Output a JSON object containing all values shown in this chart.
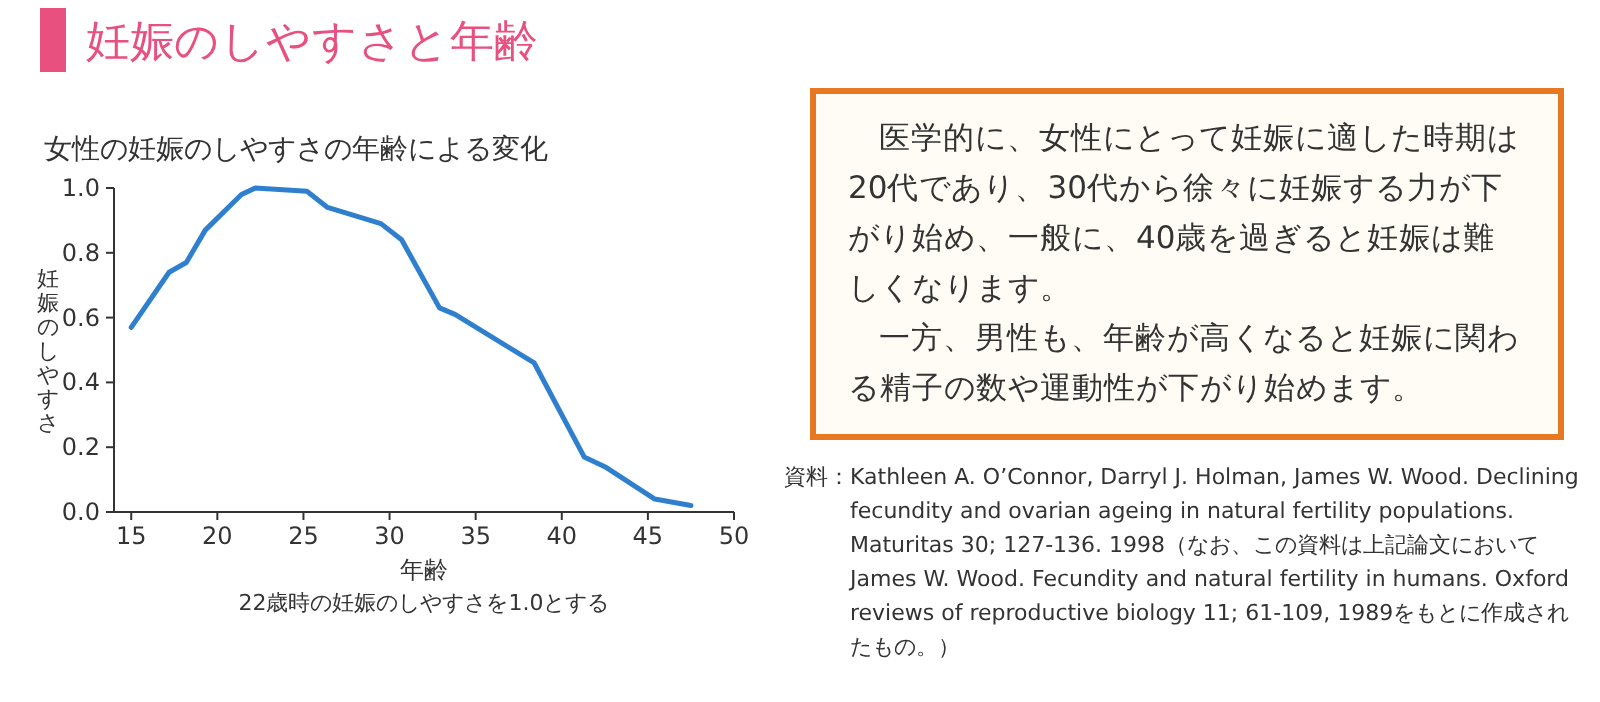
{
  "chart_data": {
    "type": "line",
    "title": "妊娠のしやすさと年齢",
    "subtitle": "女性の妊娠のしやすさの年齢による変化",
    "xlabel": "年齢",
    "ylabel": "妊娠のしやすさ",
    "x": [
      15,
      17.2,
      18.2,
      19.3,
      21.4,
      22.2,
      25.2,
      26.4,
      29.5,
      30.7,
      32.9,
      33.8,
      38.4,
      41.3,
      42.5,
      45.4,
      47.5
    ],
    "series": [
      {
        "color": "#2f7fcf",
        "values": [
          0.57,
          0.74,
          0.77,
          0.87,
          0.98,
          1.0,
          0.99,
          0.94,
          0.89,
          0.84,
          0.63,
          0.61,
          0.46,
          0.17,
          0.14,
          0.04,
          0.02
        ]
      }
    ],
    "xlim": [
      14,
      50
    ],
    "ylim": [
      0,
      1
    ],
    "xticks": [
      15,
      20,
      25,
      30,
      35,
      40,
      45,
      50
    ],
    "yticks": [
      {
        "value": 0,
        "label": "0.0"
      },
      {
        "value": 0.2,
        "label": "0.2"
      },
      {
        "value": 0.4,
        "label": "0.4"
      },
      {
        "value": 0.6,
        "label": "0.6"
      },
      {
        "value": 0.8,
        "label": "0.8"
      },
      {
        "value": 1,
        "label": "1.0"
      }
    ],
    "annotations": [
      "22歳時の妊娠のしやすさを1.0とする",
      "医学的に、女性にとって妊娠に適した時期は20代であり、30代から徐々に妊娠する力が下がり始め、一般に、40歳を過ぎると妊娠は難しくなります。",
      "一方、男性も、年齢が高くなると妊娠に関わる精子の数や運動性が下がり始めます。",
      "資料：Kathleen A. O’Connor, Darryl J. Holman, James W. Wood. Declining fecundity and ovarian ageing in natural fertility populations. Maturitas 30; 127-136. 1998（なお、この資料は上記論文においてJames W. Wood. Fecundity and natural fertility in humans. Oxford reviews of reproductive biology 11; 61-109, 1989をもとに作成されたもの。）"
    ]
  }
}
